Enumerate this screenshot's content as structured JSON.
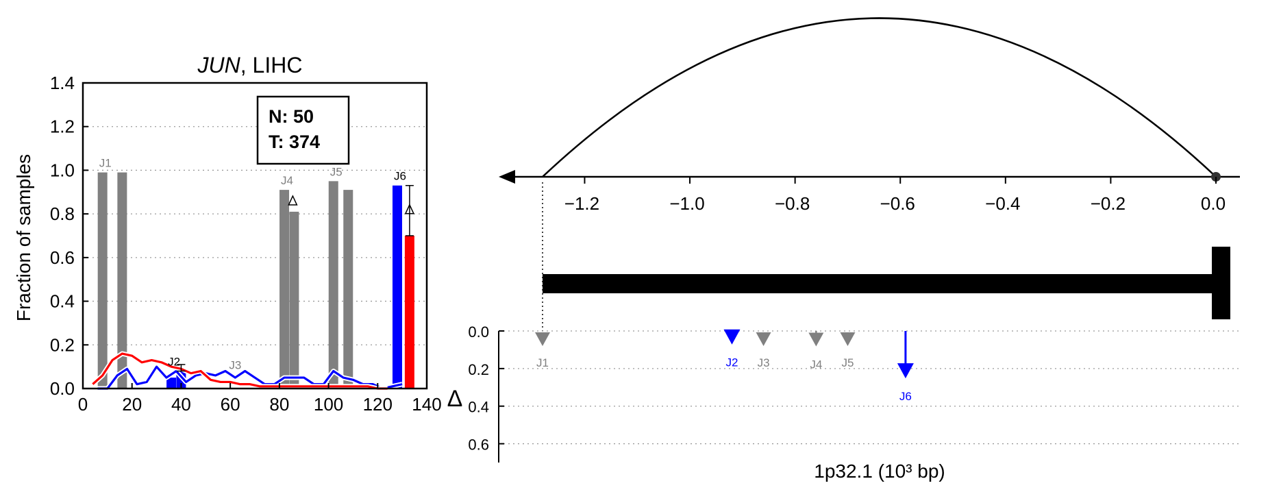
{
  "chart_data": [
    {
      "type": "bar",
      "title_gene": "JUN",
      "title_rest": ", LIHC",
      "ylabel": "Fraction of samples",
      "xlim": [
        0,
        140
      ],
      "ylim": [
        0,
        1.4
      ],
      "xticks": [
        "0",
        "20",
        "40",
        "60",
        "80",
        "100",
        "120",
        "140"
      ],
      "yticks": [
        "0.0",
        "0.2",
        "0.4",
        "0.6",
        "0.8",
        "1.0",
        "1.2",
        "1.4"
      ],
      "grid": "horizontal dotted",
      "legend_box": {
        "line1": "N: 50",
        "line2": "T: 374"
      },
      "colors": {
        "normal": "#0000ff",
        "tumor": "#ff0000",
        "other": "#808080",
        "delta_label": "#000000"
      },
      "junctions": [
        {
          "label": "J1",
          "x": [
            8,
            16
          ],
          "values": [
            0.99,
            0.99
          ],
          "color": "#808080"
        },
        {
          "label": "J2",
          "x": [
            36,
            40
          ],
          "values": [
            0.05,
            0.08
          ],
          "err": 0.03,
          "color": "#0000ff"
        },
        {
          "label": "J3",
          "x": [],
          "values": [],
          "color": "#808080"
        },
        {
          "label": "J4",
          "x": [
            82,
            86
          ],
          "values": [
            0.91,
            0.81
          ],
          "delta": 0.86,
          "color": "#808080"
        },
        {
          "label": "J5",
          "x": [
            102,
            108
          ],
          "values": [
            0.95,
            0.91
          ],
          "color": "#808080"
        },
        {
          "label": "J6",
          "x": [
            128,
            133
          ],
          "values": [
            0.93,
            0.7
          ],
          "err": 0.23,
          "delta": 0.82,
          "color": "#0000ff"
        }
      ],
      "series": [
        {
          "name": "normal",
          "color": "#0000ff",
          "x": [
            6,
            10,
            14,
            18,
            22,
            26,
            30,
            34,
            38,
            42,
            46,
            50,
            54,
            58,
            62,
            66,
            70,
            74,
            78,
            82,
            86,
            90,
            94,
            98,
            102,
            106,
            110,
            114,
            118,
            122,
            126,
            130
          ],
          "y": [
            0,
            0,
            0.06,
            0.09,
            0.02,
            0.03,
            0.1,
            0.05,
            0.08,
            0.03,
            0.06,
            0.07,
            0.06,
            0.08,
            0.05,
            0.08,
            0.05,
            0.02,
            0.02,
            0.05,
            0.05,
            0.05,
            0.02,
            0.02,
            0.08,
            0.05,
            0.04,
            0.02,
            0.02,
            0,
            0.01,
            0.02
          ]
        },
        {
          "name": "tumor",
          "color": "#ff0000",
          "x": [
            4,
            8,
            12,
            16,
            20,
            24,
            28,
            32,
            36,
            40,
            44,
            48,
            52,
            56,
            60,
            64,
            68,
            72,
            76,
            80,
            84,
            88,
            92,
            96,
            100,
            104,
            108,
            112,
            116,
            120,
            124
          ],
          "y": [
            0.02,
            0.06,
            0.13,
            0.16,
            0.15,
            0.12,
            0.13,
            0.12,
            0.1,
            0.09,
            0.07,
            0.08,
            0.04,
            0.03,
            0.03,
            0.02,
            0.02,
            0.01,
            0.01,
            0.01,
            0.01,
            0.01,
            0.01,
            0.01,
            0.01,
            0.01,
            0.01,
            0.01,
            0.01,
            0,
            0
          ]
        }
      ]
    },
    {
      "type": "diagram",
      "xlabel": "1p32.1 (10³ bp)",
      "xlim": [
        -1.3,
        0.05
      ],
      "xticks": [
        "−1.2",
        "−1.0",
        "−0.8",
        "−0.6",
        "−0.4",
        "−0.2",
        "0.0"
      ],
      "xtick_values": [
        -1.2,
        -1.0,
        -0.8,
        -0.6,
        -0.4,
        -0.2,
        0.0
      ],
      "arc": {
        "from": -1.28,
        "to": 0.0
      },
      "gene_body": {
        "start": -1.28,
        "end": 0.0
      },
      "delta_axis": {
        "label": "Δ",
        "ticks": [
          "0.0",
          "0.2",
          "0.4",
          "0.6"
        ],
        "ylim": [
          0,
          0.7
        ]
      },
      "junction_markers": [
        {
          "label": "J1",
          "pos": -1.28,
          "delta": 0.0,
          "color": "#808080",
          "kind": "triangle"
        },
        {
          "label": "J2",
          "pos": -0.92,
          "delta": 0.05,
          "color": "#0000ff",
          "kind": "arrow"
        },
        {
          "label": "J3",
          "pos": -0.86,
          "delta": 0.0,
          "color": "#808080",
          "kind": "triangle"
        },
        {
          "label": "J4",
          "pos": -0.76,
          "delta": 0.06,
          "color": "#808080",
          "kind": "triangle-arrow"
        },
        {
          "label": "J5",
          "pos": -0.7,
          "delta": 0.0,
          "color": "#808080",
          "kind": "triangle"
        },
        {
          "label": "J6",
          "pos": -0.59,
          "delta": 0.23,
          "color": "#0000ff",
          "kind": "arrow"
        }
      ]
    }
  ]
}
